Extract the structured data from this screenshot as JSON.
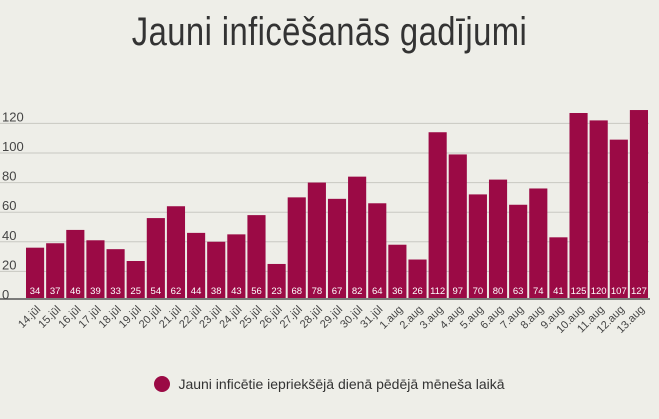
{
  "chart_data": {
    "type": "bar",
    "title": "Jauni inficēšanās gadījumi",
    "categories": [
      "14.jūl",
      "15.jūl",
      "16.jūl",
      "17.jūl",
      "18.jūl",
      "19.jūl",
      "20.jūl",
      "21.jūl",
      "22.jūl",
      "23.jūl",
      "24.jūl",
      "25.jūl",
      "26.jūl",
      "27.jūl",
      "28.jūl",
      "29.jūl",
      "30.jūl",
      "31.jūl",
      "1.aug",
      "2.aug",
      "3.aug",
      "4.aug",
      "5.aug",
      "6.aug",
      "7.aug",
      "8.aug",
      "9.aug",
      "10.aug",
      "11.aug",
      "12.aug",
      "13.aug"
    ],
    "values": [
      34,
      37,
      46,
      39,
      33,
      25,
      54,
      62,
      44,
      38,
      43,
      56,
      23,
      68,
      78,
      67,
      82,
      64,
      36,
      26,
      112,
      97,
      70,
      80,
      63,
      74,
      41,
      125,
      120,
      107,
      127
    ],
    "yticks": [
      0,
      20,
      40,
      60,
      80,
      100,
      120
    ],
    "ylim": [
      0,
      130
    ],
    "grid": true,
    "legend": {
      "label": "Jauni inficētie iepriekšējā dienā pēdējā mēneša laikā",
      "position": "bottom"
    },
    "color": "#9b0a45"
  }
}
